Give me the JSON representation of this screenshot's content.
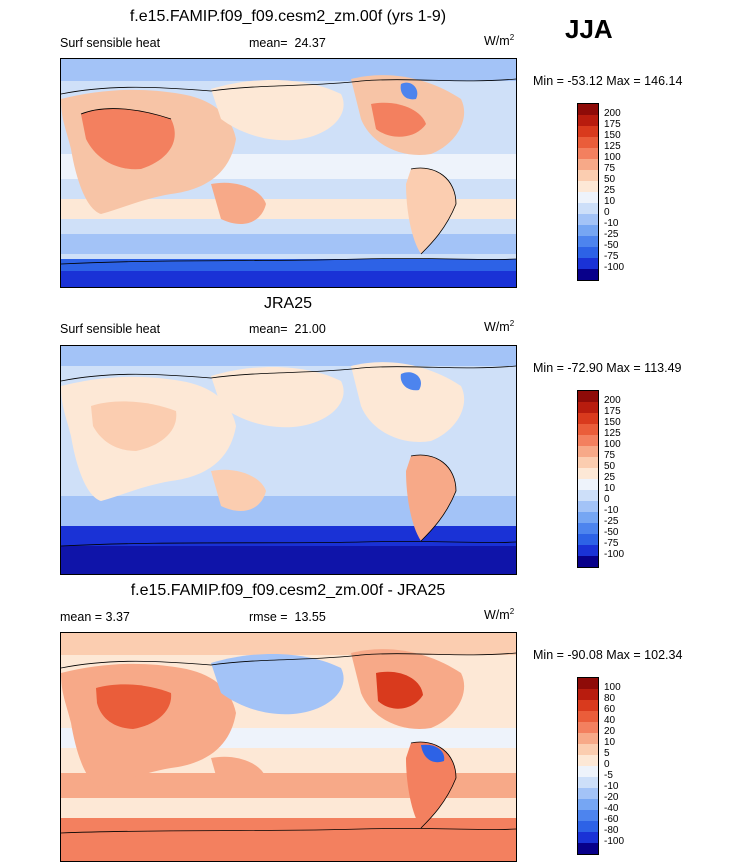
{
  "season": "JJA",
  "colors": {
    "scale": [
      "#08008a",
      "#1a32d6",
      "#2d62e6",
      "#4d84ee",
      "#76a6f3",
      "#a3c3f7",
      "#cddff9",
      "#eef3fb",
      "#fde8d6",
      "#fbcdb0",
      "#f7a988",
      "#f3805f",
      "#ea5d3a",
      "#d93a1d",
      "#b81c0e",
      "#8e0b08"
    ],
    "land_warm": "#f7c4a6",
    "ocean": "#cfe0f8",
    "coast": "#000000"
  },
  "panels": [
    {
      "title": "f.e15.FAMIP.f09_f09.cesm2_zm.00f (yrs 1-9)",
      "left": "Surf sensible heat",
      "mid_label": "mean=",
      "mid_value": "24.37",
      "units_base": "W/m",
      "units_sup": "2",
      "minmax": "Min = -53.12 Max = 146.14",
      "colorbar_ticks": [
        "200",
        "175",
        "150",
        "125",
        "100",
        "75",
        "50",
        "25",
        "10",
        "0",
        "-10",
        "-25",
        "-50",
        "-75",
        "-100"
      ]
    },
    {
      "title": "JRA25",
      "left": "Surf sensible heat",
      "mid_label": "mean=",
      "mid_value": "21.00",
      "units_base": "W/m",
      "units_sup": "2",
      "minmax": "Min = -72.90 Max = 113.49",
      "colorbar_ticks": [
        "200",
        "175",
        "150",
        "125",
        "100",
        "75",
        "50",
        "25",
        "10",
        "0",
        "-10",
        "-25",
        "-50",
        "-75",
        "-100"
      ]
    },
    {
      "title": "f.e15.FAMIP.f09_f09.cesm2_zm.00f - JRA25",
      "left": "mean =   3.37",
      "mid_label": "rmse =",
      "mid_value": "13.55",
      "units_base": "W/m",
      "units_sup": "2",
      "minmax": "Min = -90.08 Max = 102.34",
      "colorbar_ticks": [
        "100",
        "80",
        "60",
        "40",
        "20",
        "10",
        "5",
        "0",
        "-5",
        "-10",
        "-20",
        "-40",
        "-60",
        "-80",
        "-100"
      ]
    }
  ],
  "chart_data": [
    {
      "type": "heatmap",
      "title": "f.e15.FAMIP.f09_f09.cesm2_zm.00f (yrs 1-9)",
      "variable": "Surf sensible heat",
      "mean": 24.37,
      "min": -53.12,
      "max": 146.14,
      "units": "W/m2",
      "levels": [
        -100,
        -75,
        -50,
        -25,
        -10,
        0,
        10,
        25,
        50,
        75,
        100,
        125,
        150,
        175,
        200
      ]
    },
    {
      "type": "heatmap",
      "title": "JRA25",
      "variable": "Surf sensible heat",
      "mean": 21.0,
      "min": -72.9,
      "max": 113.49,
      "units": "W/m2",
      "levels": [
        -100,
        -75,
        -50,
        -25,
        -10,
        0,
        10,
        25,
        50,
        75,
        100,
        125,
        150,
        175,
        200
      ]
    },
    {
      "type": "heatmap",
      "title": "f.e15.FAMIP.f09_f09.cesm2_zm.00f - JRA25",
      "mean": 3.37,
      "rmse": 13.55,
      "min": -90.08,
      "max": 102.34,
      "units": "W/m2",
      "levels": [
        -100,
        -80,
        -60,
        -40,
        -20,
        -10,
        -5,
        0,
        5,
        10,
        20,
        40,
        60,
        80,
        100
      ]
    }
  ]
}
